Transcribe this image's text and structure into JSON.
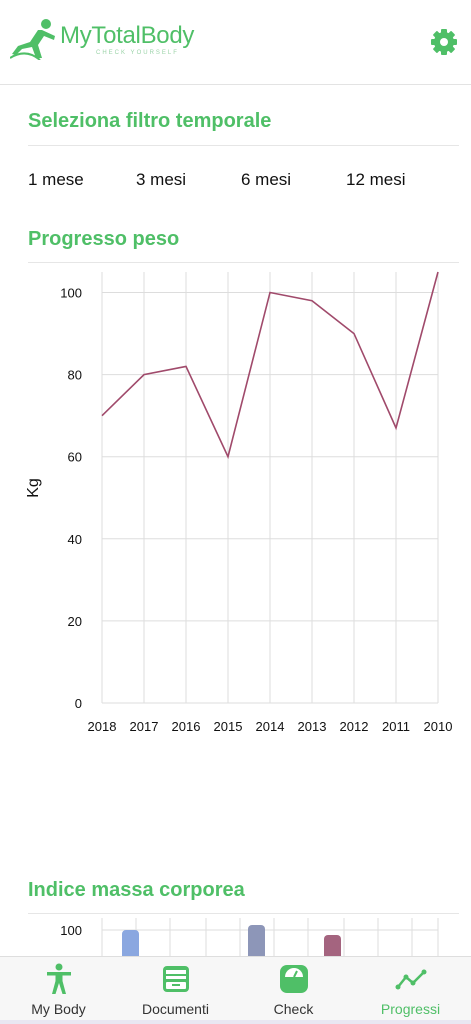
{
  "app": {
    "brand": "MyTotalBody",
    "brand_sub": "CHECK YOURSELF",
    "brand_color": "#4fbf67",
    "settings_icon": "gear-icon"
  },
  "time_filter": {
    "title": "Seleziona filtro temporale",
    "options": [
      "1 mese",
      "3 mesi",
      "6 mesi",
      "12 mesi"
    ]
  },
  "chart_data": [
    {
      "type": "line",
      "title": "Progresso peso",
      "ylabel": "Kg",
      "xlabel": "",
      "categories": [
        "2018",
        "2017",
        "2016",
        "2015",
        "2014",
        "2013",
        "2012",
        "2011",
        "2010"
      ],
      "series": [
        {
          "values": [
            70,
            80,
            82,
            60,
            100,
            98,
            90,
            67,
            105
          ],
          "color": "#a04a6b"
        }
      ],
      "ylim": [
        0,
        105
      ],
      "yticks": [
        0,
        20,
        40,
        60,
        80,
        100
      ],
      "grid": true
    },
    {
      "type": "bar",
      "title": "Indice massa corporea",
      "yticks": [
        100
      ],
      "bars_visible_colors": [
        "#8aa7e0",
        "#8d96b8",
        "#a4647f"
      ]
    }
  ],
  "bottom_nav": {
    "items": [
      {
        "label": "My Body",
        "icon": "person-icon"
      },
      {
        "label": "Documenti",
        "icon": "archive-box-icon"
      },
      {
        "label": "Check",
        "icon": "scale-icon"
      },
      {
        "label": "Progressi",
        "icon": "trend-line-icon"
      }
    ],
    "active": "Progressi"
  }
}
